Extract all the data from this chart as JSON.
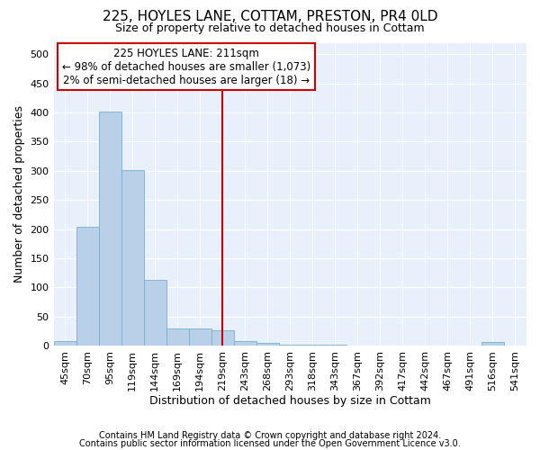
{
  "title1": "225, HOYLES LANE, COTTAM, PRESTON, PR4 0LD",
  "title2": "Size of property relative to detached houses in Cottam",
  "xlabel": "Distribution of detached houses by size in Cottam",
  "ylabel": "Number of detached properties",
  "categories": [
    "45sqm",
    "70sqm",
    "95sqm",
    "119sqm",
    "144sqm",
    "169sqm",
    "194sqm",
    "219sqm",
    "243sqm",
    "268sqm",
    "293sqm",
    "318sqm",
    "343sqm",
    "367sqm",
    "392sqm",
    "417sqm",
    "442sqm",
    "467sqm",
    "491sqm",
    "516sqm",
    "541sqm"
  ],
  "values": [
    7,
    204,
    401,
    302,
    112,
    30,
    30,
    26,
    7,
    5,
    2,
    2,
    2,
    0,
    0,
    0,
    0,
    0,
    0,
    6,
    0
  ],
  "bar_color": "#b8d0e8",
  "bar_edgecolor": "#7aadd4",
  "vline_x_index": 7,
  "vline_color": "#cc0000",
  "annotation_text": "225 HOYLES LANE: 211sqm\n← 98% of detached houses are smaller (1,073)\n2% of semi-detached houses are larger (18) →",
  "annotation_box_facecolor": "#ffffff",
  "annotation_box_edgecolor": "#cc0000",
  "footer1": "Contains HM Land Registry data © Crown copyright and database right 2024.",
  "footer2": "Contains public sector information licensed under the Open Government Licence v3.0.",
  "bg_color": "#e8f0fb",
  "ylim": [
    0,
    520
  ],
  "yticks": [
    0,
    50,
    100,
    150,
    200,
    250,
    300,
    350,
    400,
    450,
    500
  ],
  "title1_fontsize": 11,
  "title2_fontsize": 9,
  "axis_label_fontsize": 9,
  "tick_fontsize": 8,
  "footer_fontsize": 7
}
